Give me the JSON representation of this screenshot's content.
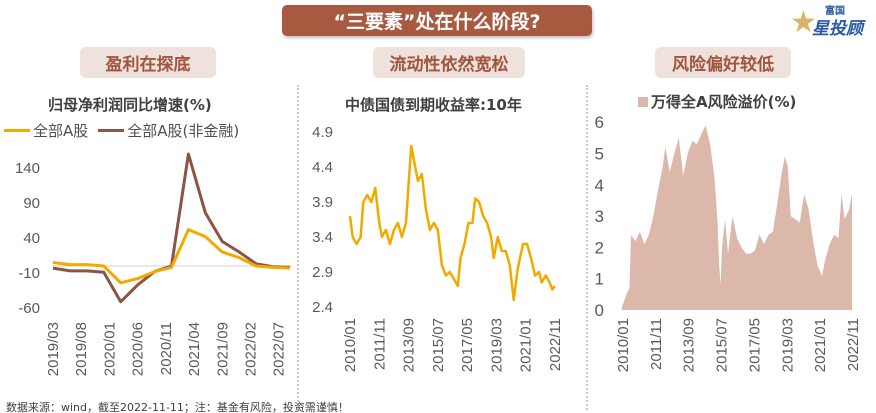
{
  "header": {
    "title": "“三要素”处在什么阶段?"
  },
  "logo": {
    "brand_small": "富国",
    "brand_large": "星投顾"
  },
  "sections": [
    {
      "label": "盈利在探底"
    },
    {
      "label": "流动性依然宽松"
    },
    {
      "label": "风险偏好较低"
    }
  ],
  "footer": "数据来源：wind，截至2022-11-11；注：基金有风险，投资需谨慎！",
  "colors": {
    "banner": "#a85a40",
    "pill": "#efe2dc",
    "yellow": "#f2a900",
    "brown": "#8c5444",
    "area": "#dbb8aa"
  },
  "chart_data": [
    {
      "type": "line",
      "title": "归母净利润同比增速(%)",
      "ylim": [
        -60,
        160
      ],
      "yticks": [
        140,
        90,
        40,
        -10,
        -60
      ],
      "xticklabels": [
        "2019/03",
        "2019/08",
        "2020/01",
        "2020/06",
        "2020/11",
        "2021/04",
        "2021/09",
        "2022/02",
        "2022/07"
      ],
      "x": [
        "2019/03",
        "2019/06",
        "2019/09",
        "2019/12",
        "2020/03",
        "2020/06",
        "2020/09",
        "2020/12",
        "2021/03",
        "2021/06",
        "2021/09",
        "2021/12",
        "2022/03",
        "2022/06",
        "2022/09"
      ],
      "series": [
        {
          "name": "全部A股",
          "values": [
            5,
            2,
            2,
            0,
            -24,
            -18,
            -8,
            -2,
            52,
            42,
            20,
            12,
            0,
            -2,
            -3
          ]
        },
        {
          "name": "全部A股(非金融)",
          "values": [
            -3,
            -7,
            -7,
            -9,
            -51,
            -27,
            -8,
            0,
            160,
            76,
            35,
            20,
            3,
            -1,
            -2
          ]
        }
      ],
      "legend": "top"
    },
    {
      "type": "line",
      "title": "中债国债到期收益率:10年",
      "ylim": [
        2.4,
        4.9
      ],
      "yticks": [
        4.9,
        4.4,
        3.9,
        3.4,
        2.9,
        2.4
      ],
      "xticklabels": [
        "2010/01",
        "2011/11",
        "2013/09",
        "2015/07",
        "2017/05",
        "2019/03",
        "2021/01",
        "2022/11"
      ],
      "points": [
        [
          "2010/01",
          3.7
        ],
        [
          "2010/03",
          3.4
        ],
        [
          "2010/06",
          3.3
        ],
        [
          "2010/09",
          3.4
        ],
        [
          "2010/11",
          3.9
        ],
        [
          "2011/02",
          4.0
        ],
        [
          "2011/05",
          3.9
        ],
        [
          "2011/08",
          4.1
        ],
        [
          "2011/11",
          3.6
        ],
        [
          "2012/01",
          3.4
        ],
        [
          "2012/04",
          3.5
        ],
        [
          "2012/07",
          3.3
        ],
        [
          "2012/10",
          3.5
        ],
        [
          "2013/01",
          3.6
        ],
        [
          "2013/04",
          3.4
        ],
        [
          "2013/07",
          3.6
        ],
        [
          "2013/11",
          4.7
        ],
        [
          "2014/01",
          4.5
        ],
        [
          "2014/04",
          4.2
        ],
        [
          "2014/07",
          4.3
        ],
        [
          "2014/10",
          3.8
        ],
        [
          "2015/01",
          3.5
        ],
        [
          "2015/04",
          3.6
        ],
        [
          "2015/07",
          3.5
        ],
        [
          "2015/10",
          3.0
        ],
        [
          "2016/01",
          2.85
        ],
        [
          "2016/04",
          2.9
        ],
        [
          "2016/07",
          2.8
        ],
        [
          "2016/10",
          2.7
        ],
        [
          "2016/12",
          3.1
        ],
        [
          "2017/03",
          3.3
        ],
        [
          "2017/06",
          3.6
        ],
        [
          "2017/09",
          3.6
        ],
        [
          "2017/11",
          3.95
        ],
        [
          "2018/02",
          3.9
        ],
        [
          "2018/05",
          3.7
        ],
        [
          "2018/08",
          3.6
        ],
        [
          "2018/11",
          3.4
        ],
        [
          "2019/01",
          3.1
        ],
        [
          "2019/04",
          3.4
        ],
        [
          "2019/07",
          3.2
        ],
        [
          "2019/10",
          3.2
        ],
        [
          "2020/01",
          3.0
        ],
        [
          "2020/04",
          2.5
        ],
        [
          "2020/07",
          2.95
        ],
        [
          "2020/11",
          3.3
        ],
        [
          "2021/02",
          3.3
        ],
        [
          "2021/05",
          3.1
        ],
        [
          "2021/08",
          2.85
        ],
        [
          "2021/11",
          2.9
        ],
        [
          "2022/01",
          2.75
        ],
        [
          "2022/04",
          2.85
        ],
        [
          "2022/07",
          2.75
        ],
        [
          "2022/09",
          2.65
        ],
        [
          "2022/11",
          2.7
        ]
      ]
    },
    {
      "type": "area",
      "title": "万得全A风险溢价(%)",
      "legend": "top",
      "ylim": [
        0,
        6
      ],
      "yticks": [
        6,
        5,
        4,
        3,
        2,
        1,
        0
      ],
      "xticklabels": [
        "2010/01",
        "2011/11",
        "2013/09",
        "2015/07",
        "2017/05",
        "2019/03",
        "2021/01",
        "2022/11"
      ],
      "points": [
        [
          "2010/01",
          0.1
        ],
        [
          "2010/04",
          0.5
        ],
        [
          "2010/06",
          0.7
        ],
        [
          "2010/07",
          2.4
        ],
        [
          "2010/10",
          2.2
        ],
        [
          "2011/01",
          2.5
        ],
        [
          "2011/04",
          2.1
        ],
        [
          "2011/07",
          2.4
        ],
        [
          "2011/10",
          3.0
        ],
        [
          "2012/01",
          3.8
        ],
        [
          "2012/04",
          4.5
        ],
        [
          "2012/06",
          5.2
        ],
        [
          "2012/09",
          4.4
        ],
        [
          "2012/12",
          5.0
        ],
        [
          "2013/03",
          5.5
        ],
        [
          "2013/06",
          4.3
        ],
        [
          "2013/09",
          5.0
        ],
        [
          "2013/12",
          5.4
        ],
        [
          "2014/03",
          5.3
        ],
        [
          "2014/06",
          5.6
        ],
        [
          "2014/09",
          5.9
        ],
        [
          "2014/12",
          5.3
        ],
        [
          "2015/03",
          4.2
        ],
        [
          "2015/05",
          2.8
        ],
        [
          "2015/06",
          1.5
        ],
        [
          "2015/07",
          0.8
        ],
        [
          "2015/08",
          2.0
        ],
        [
          "2015/10",
          2.9
        ],
        [
          "2015/12",
          1.8
        ],
        [
          "2016/03",
          3.0
        ],
        [
          "2016/06",
          2.3
        ],
        [
          "2016/09",
          2.0
        ],
        [
          "2016/12",
          1.8
        ],
        [
          "2017/03",
          1.8
        ],
        [
          "2017/06",
          1.9
        ],
        [
          "2017/09",
          2.4
        ],
        [
          "2017/12",
          2.1
        ],
        [
          "2018/03",
          2.4
        ],
        [
          "2018/06",
          2.5
        ],
        [
          "2018/09",
          3.4
        ],
        [
          "2018/12",
          4.4
        ],
        [
          "2019/02",
          4.9
        ],
        [
          "2019/04",
          4.6
        ],
        [
          "2019/06",
          3.0
        ],
        [
          "2019/09",
          2.9
        ],
        [
          "2019/12",
          2.8
        ],
        [
          "2020/03",
          3.7
        ],
        [
          "2020/06",
          3.2
        ],
        [
          "2020/09",
          2.2
        ],
        [
          "2020/12",
          1.4
        ],
        [
          "2021/03",
          1.1
        ],
        [
          "2021/05",
          1.6
        ],
        [
          "2021/08",
          2.1
        ],
        [
          "2021/11",
          2.4
        ],
        [
          "2022/02",
          2.3
        ],
        [
          "2022/04",
          3.7
        ],
        [
          "2022/06",
          2.9
        ],
        [
          "2022/09",
          3.2
        ],
        [
          "2022/11",
          3.7
        ]
      ]
    }
  ]
}
